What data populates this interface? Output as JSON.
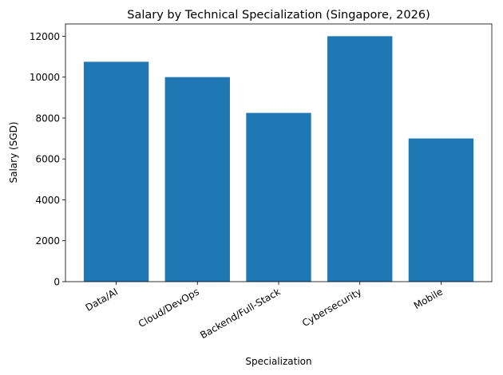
{
  "chart_data": {
    "type": "bar",
    "title": "Salary by Technical Specialization (Singapore, 2026)",
    "xlabel": "Specialization",
    "ylabel": "Salary (SGD)",
    "categories": [
      "Data/AI",
      "Cloud/DevOps",
      "Backend/Full-Stack",
      "Cybersecurity",
      "Mobile"
    ],
    "values": [
      10750,
      10000,
      8250,
      12000,
      7000
    ],
    "ylim": [
      0,
      12600
    ],
    "yticks": [
      0,
      2000,
      4000,
      6000,
      8000,
      10000,
      12000
    ],
    "grid": false,
    "bar_color": "#1f77b4"
  }
}
